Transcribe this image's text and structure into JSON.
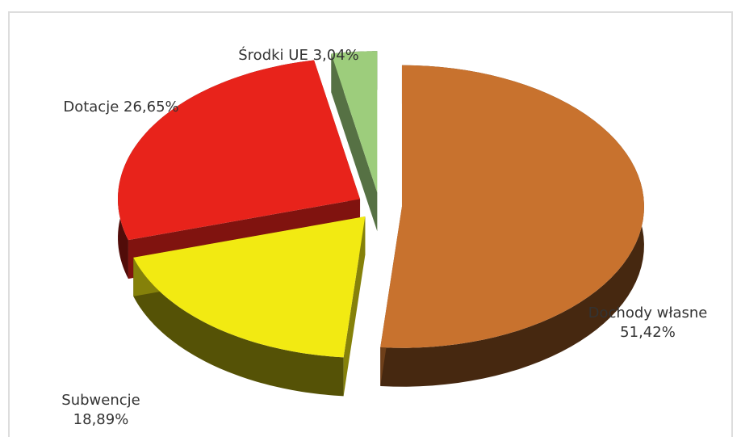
{
  "chart_data": {
    "type": "pie3d",
    "categories": [
      "Dochody własne",
      "Subwencje",
      "Dotacje",
      "Środki UE"
    ],
    "values": [
      51.42,
      18.89,
      26.65,
      3.04
    ],
    "value_labels": [
      "51,42%",
      "18,89%",
      "26,65%",
      "3,04%"
    ],
    "colors": [
      "#c8722e",
      "#f2ea12",
      "#e8231b",
      "#9dcd7c"
    ]
  }
}
